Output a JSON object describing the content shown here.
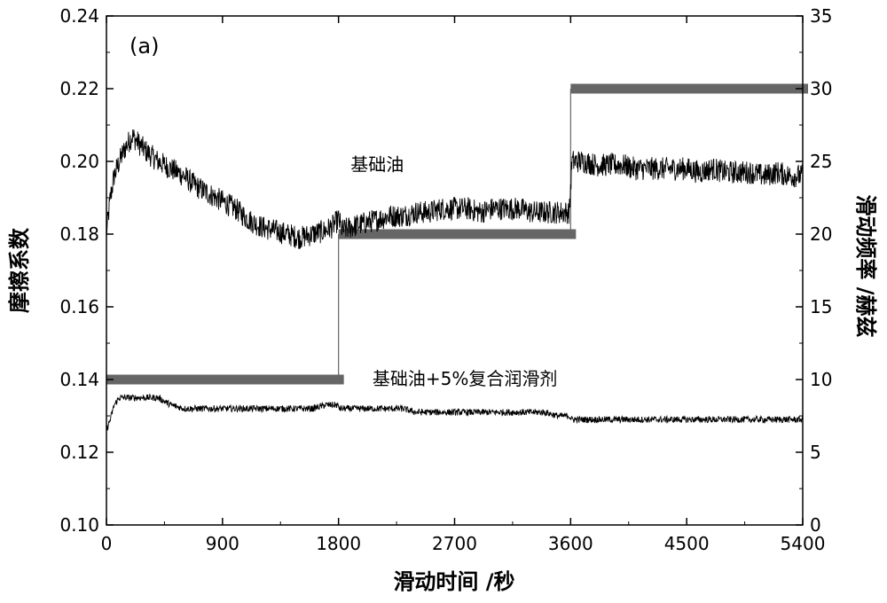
{
  "chart_data": {
    "type": "line",
    "panel_label": "(a)",
    "xlabel": "滑动时间 /秒",
    "ylabel": "摩擦系数",
    "y2label": "滑动频率 /赫兹",
    "xlim": [
      0,
      5400
    ],
    "ylim": [
      0.1,
      0.24
    ],
    "y2lim": [
      0,
      35
    ],
    "x_ticks": [
      0,
      900,
      1800,
      2700,
      3600,
      4500,
      5400
    ],
    "y_ticks": [
      0.1,
      0.12,
      0.14,
      0.16,
      0.18,
      0.2,
      0.22,
      0.24
    ],
    "y2_ticks": [
      0,
      5,
      10,
      15,
      20,
      25,
      30,
      35
    ],
    "grid": false,
    "annotations": [
      {
        "text": "基础油",
        "x": 2100,
        "y": 0.1975
      },
      {
        "text": "基础油+5%复合润滑剂",
        "x": 2780,
        "y": 0.1385
      }
    ],
    "series": [
      {
        "axis": "left",
        "color": "#000000",
        "x": [
          0,
          30,
          60,
          100,
          150,
          200,
          250,
          300,
          400,
          500,
          600,
          700,
          800,
          900,
          1000,
          1100,
          1200,
          1300,
          1400,
          1500,
          1600,
          1700,
          1750,
          1800,
          1830,
          1900,
          2000,
          2100,
          2200,
          2300,
          2400,
          2500,
          2600,
          2700,
          2800,
          2900,
          3000,
          3100,
          3200,
          3300,
          3400,
          3500,
          3590,
          3610,
          3650,
          3700,
          3800,
          3900,
          4000,
          4100,
          4200,
          4300,
          4400,
          4500,
          4600,
          4700,
          4800,
          4900,
          5000,
          5100,
          5200,
          5300,
          5400
        ],
        "values": [
          0.18,
          0.19,
          0.196,
          0.2,
          0.204,
          0.207,
          0.205,
          0.203,
          0.2,
          0.198,
          0.196,
          0.193,
          0.191,
          0.189,
          0.187,
          0.184,
          0.182,
          0.181,
          0.18,
          0.179,
          0.18,
          0.181,
          0.182,
          0.184,
          0.181,
          0.182,
          0.183,
          0.184,
          0.185,
          0.185,
          0.186,
          0.186,
          0.187,
          0.187,
          0.187,
          0.186,
          0.187,
          0.187,
          0.187,
          0.186,
          0.186,
          0.186,
          0.186,
          0.2,
          0.2,
          0.2,
          0.199,
          0.199,
          0.199,
          0.198,
          0.198,
          0.198,
          0.198,
          0.198,
          0.197,
          0.198,
          0.197,
          0.197,
          0.197,
          0.196,
          0.197,
          0.196,
          0.196
        ]
      },
      {
        "axis": "left",
        "color": "#000000",
        "x": [
          0,
          30,
          60,
          100,
          200,
          300,
          400,
          450,
          500,
          600,
          700,
          800,
          900,
          1000,
          1100,
          1200,
          1300,
          1400,
          1500,
          1600,
          1700,
          1790,
          1810,
          1900,
          2000,
          2100,
          2200,
          2300,
          2400,
          2500,
          2600,
          2700,
          2800,
          2900,
          3000,
          3100,
          3200,
          3300,
          3400,
          3500,
          3590,
          3610,
          3700,
          3800,
          3900,
          4000,
          4100,
          4200,
          4300,
          4400,
          4500,
          4600,
          4700,
          4800,
          4900,
          5000,
          5100,
          5200,
          5300,
          5400
        ],
        "values": [
          0.126,
          0.129,
          0.133,
          0.135,
          0.135,
          0.135,
          0.135,
          0.134,
          0.133,
          0.132,
          0.132,
          0.132,
          0.132,
          0.132,
          0.132,
          0.132,
          0.132,
          0.132,
          0.132,
          0.132,
          0.133,
          0.133,
          0.132,
          0.132,
          0.132,
          0.132,
          0.132,
          0.132,
          0.131,
          0.131,
          0.131,
          0.131,
          0.131,
          0.131,
          0.131,
          0.131,
          0.131,
          0.131,
          0.131,
          0.13,
          0.13,
          0.129,
          0.129,
          0.129,
          0.129,
          0.129,
          0.129,
          0.129,
          0.129,
          0.129,
          0.129,
          0.129,
          0.129,
          0.129,
          0.129,
          0.129,
          0.129,
          0.129,
          0.129,
          0.129
        ]
      },
      {
        "axis": "right",
        "color": "#666666",
        "x": [
          0,
          1800,
          1800,
          3600,
          3600,
          5400
        ],
        "values": [
          10,
          10,
          20,
          20,
          30,
          30
        ]
      }
    ]
  }
}
